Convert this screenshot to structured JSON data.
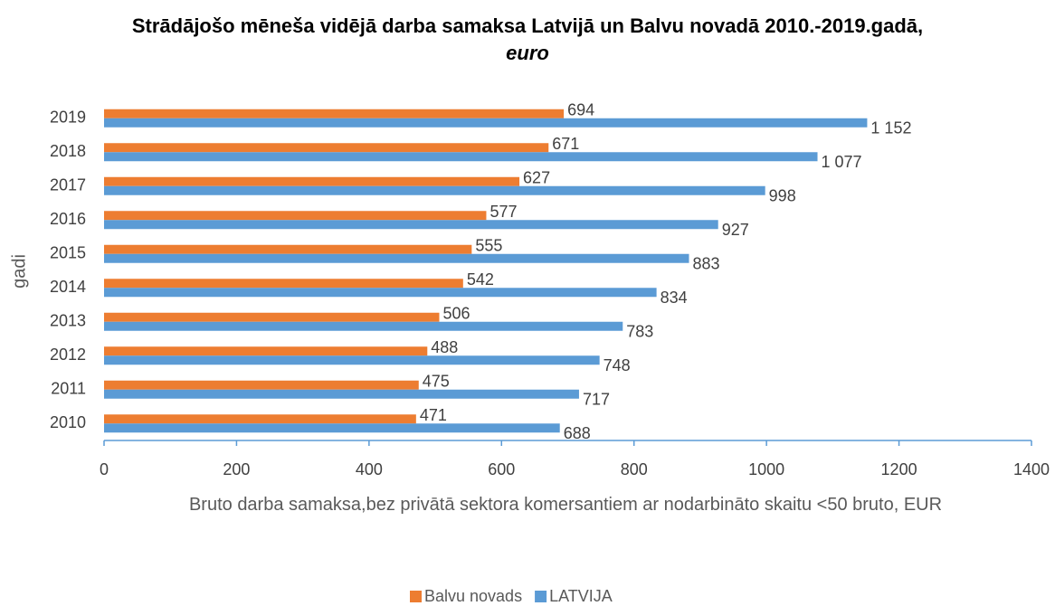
{
  "chart_data": {
    "type": "barh",
    "title": "Strādājošo mēneša vidējā darba samaksa Latvijā un Balvu novadā  2010.-2019.gadā,",
    "title_unit": "euro",
    "xlabel": "Bruto darba samaksa,bez privātā sektora komersantiem ar nodarbināto skaitu <50 bruto, EUR",
    "ylabel": "gadi",
    "categories": [
      "2010",
      "2011",
      "2012",
      "2013",
      "2014",
      "2015",
      "2016",
      "2017",
      "2018",
      "2019"
    ],
    "series": [
      {
        "name": "Balvu novads",
        "color": "#ed7d31",
        "values": [
          471,
          475,
          488,
          506,
          542,
          555,
          577,
          627,
          671,
          694
        ]
      },
      {
        "name": "LATVIJA",
        "color": "#5b9bd5",
        "values": [
          688,
          717,
          748,
          783,
          834,
          883,
          927,
          998,
          1077,
          1152
        ],
        "value_labels": [
          "688",
          "717",
          "748",
          "783",
          "834",
          "883",
          "927",
          "998",
          "1 077",
          "1 152"
        ]
      }
    ],
    "xlim": [
      0,
      1400
    ],
    "xticks": [
      0,
      200,
      400,
      600,
      800,
      1000,
      1200,
      1400
    ],
    "legend": "bottom"
  }
}
